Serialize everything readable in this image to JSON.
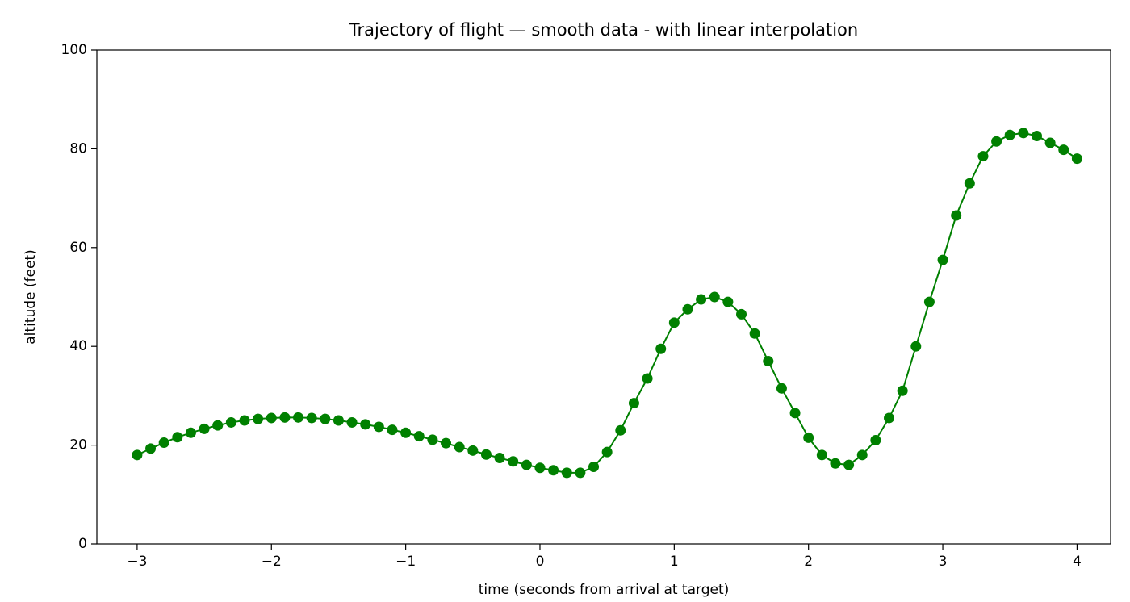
{
  "chart_data": {
    "type": "line",
    "title": "Trajectory of flight  —  smooth data - with linear interpolation",
    "xlabel": "time (seconds from arrival at target)",
    "ylabel": "altitude (feet)",
    "x": [
      -3.0,
      -2.9,
      -2.8,
      -2.7,
      -2.6,
      -2.5,
      -2.4,
      -2.3,
      -2.2,
      -2.1,
      -2.0,
      -1.9,
      -1.8,
      -1.7,
      -1.6,
      -1.5,
      -1.4,
      -1.3,
      -1.2,
      -1.1,
      -1.0,
      -0.9,
      -0.8,
      -0.7,
      -0.6,
      -0.5,
      -0.4,
      -0.3,
      -0.2,
      -0.1,
      0.0,
      0.1,
      0.2,
      0.3,
      0.4,
      0.5,
      0.6,
      0.7,
      0.8,
      0.9,
      1.0,
      1.1,
      1.2,
      1.3,
      1.4,
      1.5,
      1.6,
      1.7,
      1.8,
      1.9,
      2.0,
      2.1,
      2.2,
      2.3,
      2.4,
      2.5,
      2.6,
      2.7,
      2.8,
      2.9,
      3.0,
      3.1,
      3.2,
      3.3,
      3.4,
      3.5,
      3.6,
      3.7,
      3.8,
      3.9,
      4.0
    ],
    "series": [
      {
        "color": "#008000",
        "values": [
          18,
          19.3,
          20.5,
          21.6,
          22.5,
          23.3,
          24,
          24.6,
          25,
          25.3,
          25.5,
          25.6,
          25.6,
          25.5,
          25.3,
          25,
          24.6,
          24.2,
          23.7,
          23.1,
          22.5,
          21.8,
          21.1,
          20.4,
          19.6,
          18.9,
          18.1,
          17.4,
          16.7,
          16,
          15.4,
          14.9,
          14.4,
          14.4,
          15.6,
          18.6,
          23,
          28.5,
          33.5,
          39.5,
          44.8,
          47.5,
          49.5,
          50,
          49,
          46.5,
          42.6,
          37,
          31.5,
          26.5,
          21.5,
          18,
          16.3,
          16,
          18,
          21,
          25.5,
          31,
          40,
          49,
          57.5,
          66.5,
          73,
          78.5,
          81.5,
          82.8,
          83.2,
          82.6,
          81.2,
          79.8,
          78
        ]
      }
    ],
    "xlim": [
      -3.3,
      4.25
    ],
    "ylim": [
      0,
      100
    ],
    "xticks": [
      {
        "value": -3,
        "label": "−3"
      },
      {
        "value": -2,
        "label": "−2"
      },
      {
        "value": -1,
        "label": "−1"
      },
      0,
      1,
      2,
      3,
      4
    ],
    "yticks": [
      0,
      20,
      40,
      60,
      80,
      100
    ]
  }
}
